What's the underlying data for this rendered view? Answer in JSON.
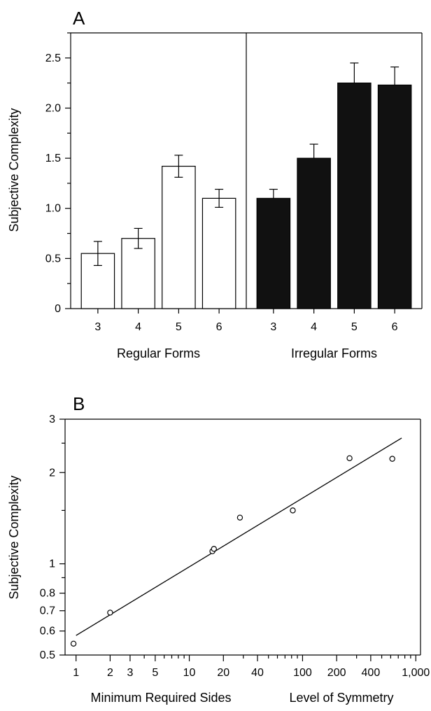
{
  "chart_data": [
    {
      "panel": "A",
      "type": "bar",
      "ylabel": "Subjective Complexity",
      "ylim": [
        0,
        2.75
      ],
      "yticks": [
        0,
        0.5,
        1.0,
        1.5,
        2.0,
        2.5
      ],
      "ytick_labels": [
        "0",
        "0.5",
        "1.0",
        "1.5",
        "2.0",
        "2.5"
      ],
      "groups": [
        {
          "label": "Regular Forms",
          "categories": [
            "3",
            "4",
            "5",
            "6"
          ],
          "values": [
            0.55,
            0.7,
            1.42,
            1.1
          ],
          "errors": [
            0.12,
            0.1,
            0.11,
            0.09
          ],
          "fill": "#ffffff"
        },
        {
          "label": "Irregular Forms",
          "categories": [
            "3",
            "4",
            "5",
            "6"
          ],
          "values": [
            1.1,
            1.5,
            2.25,
            2.23
          ],
          "errors": [
            0.09,
            0.14,
            0.2,
            0.18
          ],
          "fill": "#111111"
        }
      ],
      "grid": false
    },
    {
      "panel": "B",
      "type": "scatter",
      "xscale": "log",
      "yscale": "log",
      "ylabel": "Subjective Complexity",
      "xlabels": [
        "Minimum Required Sides",
        "Level of Symmetry"
      ],
      "xlim": [
        0.8,
        1100
      ],
      "ylim": [
        0.5,
        3
      ],
      "xticks": [
        1,
        2,
        3,
        5,
        10,
        20,
        40,
        100,
        200,
        400,
        1000
      ],
      "xtick_labels": [
        "1",
        "2",
        "3",
        "5",
        "10",
        "20",
        "40",
        "100",
        "200",
        "400",
        "1,000"
      ],
      "yticks": [
        0.5,
        0.6,
        0.7,
        0.8,
        1,
        2,
        3
      ],
      "ytick_labels": [
        "0.5",
        "0.6",
        "0.7",
        "0.8",
        "1",
        "2",
        "3"
      ],
      "points": [
        {
          "x": 0.95,
          "y": 0.545
        },
        {
          "x": 2,
          "y": 0.69
        },
        {
          "x": 16,
          "y": 1.1
        },
        {
          "x": 16.5,
          "y": 1.12
        },
        {
          "x": 28,
          "y": 1.42
        },
        {
          "x": 82,
          "y": 1.5
        },
        {
          "x": 260,
          "y": 2.23
        },
        {
          "x": 620,
          "y": 2.22
        }
      ],
      "fit_line": [
        {
          "x": 1,
          "y": 0.58
        },
        {
          "x": 750,
          "y": 2.6
        }
      ],
      "grid": false
    }
  ]
}
